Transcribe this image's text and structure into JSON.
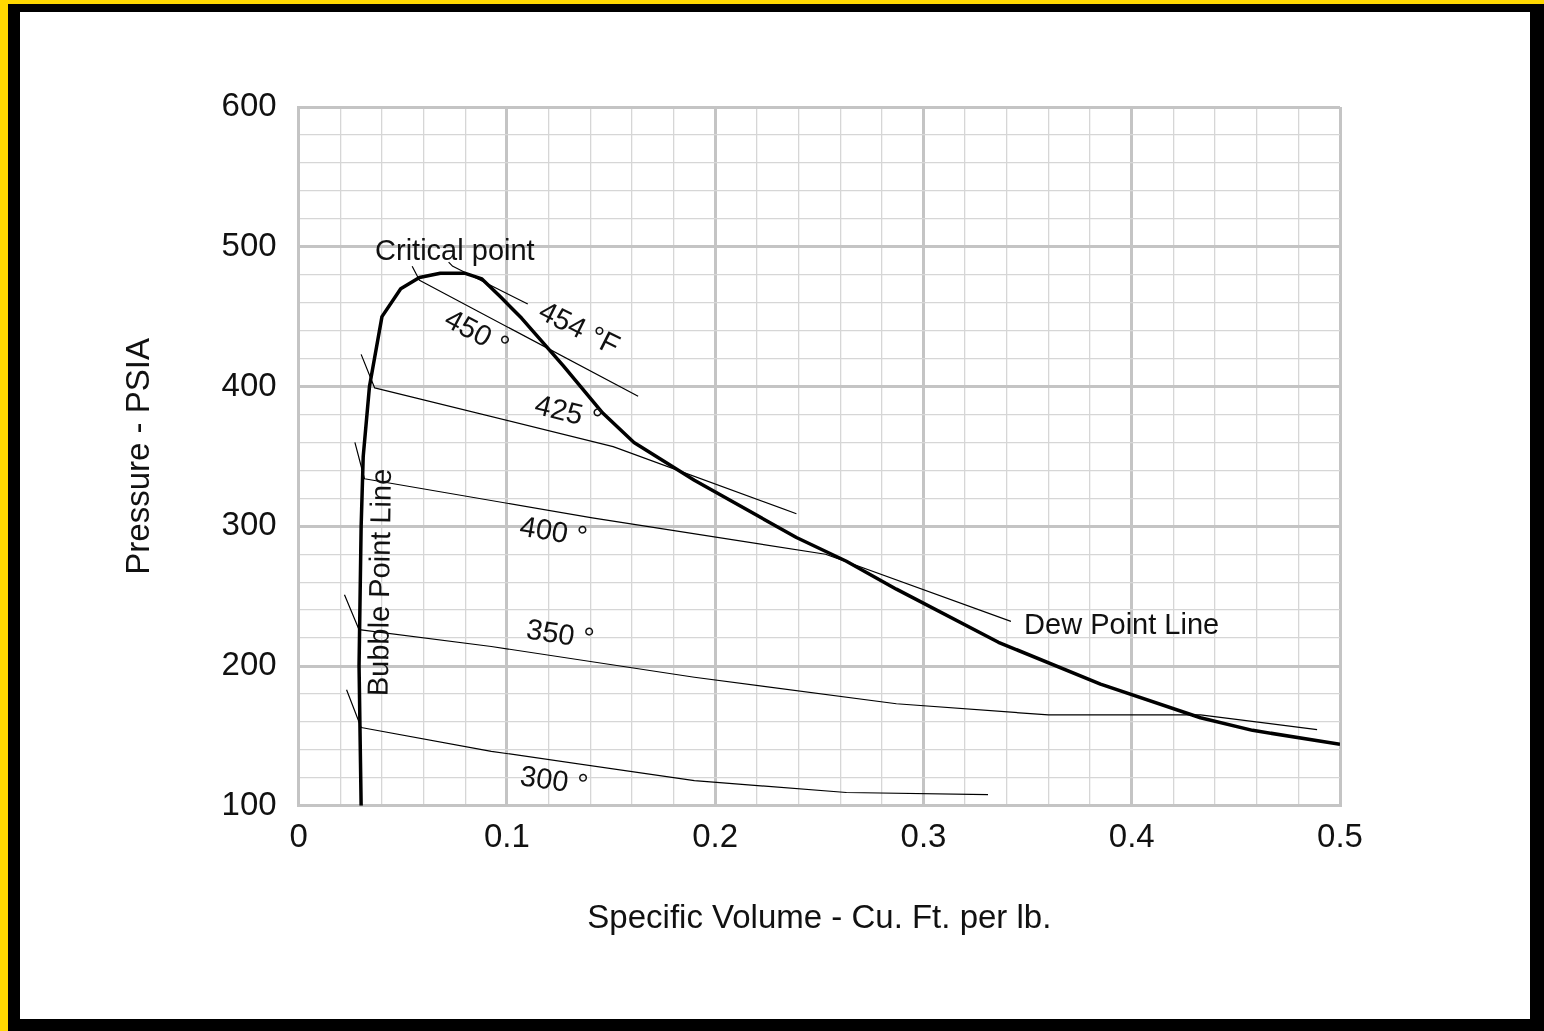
{
  "chart_data": {
    "type": "line",
    "xlabel": "Specific Volume - Cu. Ft. per lb.",
    "ylabel": "Pressure - PSIA",
    "xlim": [
      0,
      0.5
    ],
    "ylim": [
      100,
      600
    ],
    "xticks": [
      0,
      {
        "value": 0.02,
        "label": null
      },
      {
        "value": 0.04,
        "label": null
      },
      {
        "value": 0.06,
        "label": null
      },
      {
        "value": 0.08,
        "label": null
      },
      0.1,
      {
        "value": 0.12,
        "label": null
      },
      {
        "value": 0.14,
        "label": null
      },
      {
        "value": 0.16,
        "label": null
      },
      {
        "value": 0.18,
        "label": null
      },
      0.2,
      {
        "value": 0.22,
        "label": null
      },
      {
        "value": 0.24,
        "label": null
      },
      {
        "value": 0.26,
        "label": null
      },
      {
        "value": 0.28,
        "label": null
      },
      0.3,
      {
        "value": 0.32,
        "label": null
      },
      {
        "value": 0.34,
        "label": null
      },
      {
        "value": 0.36,
        "label": null
      },
      {
        "value": 0.38,
        "label": null
      },
      0.4,
      {
        "value": 0.42,
        "label": null
      },
      {
        "value": 0.44,
        "label": null
      },
      {
        "value": 0.46,
        "label": null
      },
      {
        "value": 0.48,
        "label": null
      },
      0.5
    ],
    "yticks": [
      100,
      {
        "value": 120,
        "label": null
      },
      {
        "value": 140,
        "label": null
      },
      {
        "value": 160,
        "label": null
      },
      {
        "value": 180,
        "label": null
      },
      200,
      {
        "value": 220,
        "label": null
      },
      {
        "value": 240,
        "label": null
      },
      {
        "value": 260,
        "label": null
      },
      {
        "value": 280,
        "label": null
      },
      300,
      {
        "value": 320,
        "label": null
      },
      {
        "value": 340,
        "label": null
      },
      {
        "value": 360,
        "label": null
      },
      {
        "value": 380,
        "label": null
      },
      400,
      {
        "value": 420,
        "label": null
      },
      {
        "value": 440,
        "label": null
      },
      {
        "value": 460,
        "label": null
      },
      {
        "value": 480,
        "label": null
      },
      500,
      {
        "value": 520,
        "label": null
      },
      {
        "value": 540,
        "label": null
      },
      {
        "value": 560,
        "label": null
      },
      {
        "value": 580,
        "label": null
      },
      600
    ],
    "grid": true,
    "legend": false,
    "marker": "none",
    "line_style": "solid",
    "series": [
      {
        "color": "#000000",
        "x": [
          0.03,
          0.029,
          0.03,
          0.031,
          0.034,
          0.04,
          0.049,
          0.058,
          0.068,
          0.08,
          0.088,
          0.097,
          0.107,
          0.127,
          0.146,
          0.161,
          0.19,
          0.239,
          0.263,
          0.287,
          0.336,
          0.385,
          0.433,
          0.458,
          0.5
        ],
        "values": [
          100,
          200,
          300,
          350,
          400,
          450,
          470,
          478,
          481,
          481,
          477,
          464,
          449,
          415,
          381,
          360,
          333,
          292,
          275,
          255,
          217,
          187,
          163,
          154,
          144
        ]
      },
      {
        "color": "#000000",
        "x": [
          0.072,
          0.074,
          0.11
        ],
        "values": [
          489,
          486,
          459
        ]
      },
      {
        "color": "#000000",
        "x": [
          0.0545,
          0.058,
          0.163
        ],
        "values": [
          486,
          476,
          393
        ]
      },
      {
        "color": "#000000",
        "x": [
          0.03,
          0.0365,
          0.151,
          0.239
        ],
        "values": [
          423,
          399,
          357,
          309
        ]
      },
      {
        "color": "#000000",
        "x": [
          0.027,
          0.0316,
          0.141,
          0.253,
          0.342
        ],
        "values": [
          360,
          334,
          306,
          280,
          232
        ]
      },
      {
        "color": "#000000",
        "x": [
          0.022,
          0.029,
          0.0925,
          0.19,
          0.287,
          0.36,
          0.433,
          0.489
        ],
        "values": [
          251,
          226,
          214,
          192,
          173,
          165,
          165,
          154.5
        ]
      },
      {
        "color": "#000000",
        "x": [
          0.023,
          0.03,
          0.0925,
          0.19,
          0.263,
          0.331
        ],
        "values": [
          183,
          156,
          139,
          118,
          109.5,
          108
        ]
      }
    ],
    "annotations": [
      {
        "text": "Critical point",
        "x": 0.075,
        "y": 481
      },
      {
        "text": "454 °F",
        "x": 0.11,
        "y": 459
      },
      {
        "text": "450 °",
        "x": 0.09,
        "y": 451
      },
      {
        "text": "425 °",
        "x": 0.127,
        "y": 366
      },
      {
        "text": "400 °",
        "x": 0.124,
        "y": 310
      },
      {
        "text": "350 °",
        "x": 0.124,
        "y": 207
      },
      {
        "text": "300 °",
        "x": 0.124,
        "y": 132
      },
      {
        "text": "Bubble Point Line",
        "x": 0.0296,
        "y": 260
      },
      {
        "text": "Dew Point Line",
        "x": 0.342,
        "y": 232
      }
    ]
  }
}
